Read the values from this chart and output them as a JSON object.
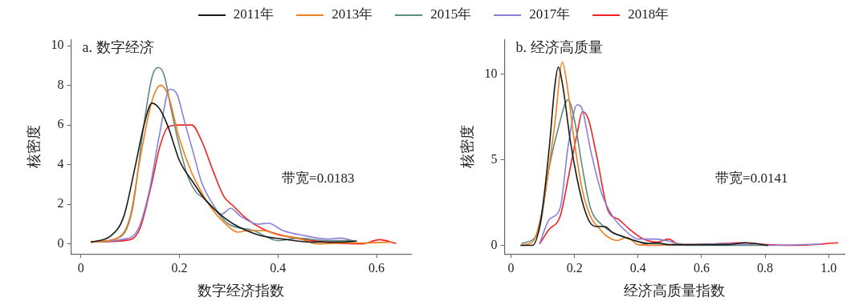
{
  "chart_data": [
    {
      "type": "line",
      "title": "a. 数字经济",
      "xlabel": "数字经济指数",
      "ylabel": "核密度",
      "legend": "top",
      "grid": false,
      "marker": "none",
      "line_style": "solid",
      "xlim": [
        -0.02,
        0.67
      ],
      "ylim": [
        -0.5,
        10.3
      ],
      "xticks": [
        0,
        0.2,
        0.4,
        0.6
      ],
      "yticks": [
        0,
        2,
        4,
        6,
        8,
        10
      ],
      "annotations": [
        "带宽=0.0183"
      ],
      "series": [
        {
          "name": "2011年",
          "color": "#1a1a1a",
          "x": [
            0.02,
            0.06,
            0.087,
            0.11,
            0.127,
            0.144,
            0.16,
            0.177,
            0.2,
            0.228,
            0.25,
            0.28,
            0.31,
            0.36,
            0.41,
            0.47,
            0.53,
            0.56
          ],
          "values": [
            0.1,
            0.4,
            1.4,
            3.9,
            5.9,
            7.1,
            6.8,
            5.9,
            4.2,
            3.1,
            2.3,
            1.55,
            1.0,
            0.46,
            0.25,
            0.1,
            0.1,
            0.15
          ]
        },
        {
          "name": "2013年",
          "color": "#f07f1e",
          "x": [
            0.02,
            0.07,
            0.1,
            0.12,
            0.144,
            0.162,
            0.177,
            0.2,
            0.223,
            0.245,
            0.268,
            0.29,
            0.318,
            0.34,
            0.37,
            0.4,
            0.44,
            0.48,
            0.53,
            0.57,
            0.63
          ],
          "values": [
            0.1,
            0.25,
            1.4,
            4.3,
            7.2,
            8.0,
            7.5,
            5.3,
            3.7,
            2.6,
            1.7,
            1.1,
            0.6,
            0.68,
            0.68,
            0.46,
            0.3,
            0,
            0.05,
            0.05,
            0.1
          ]
        },
        {
          "name": "2015年",
          "color": "#5f8a80",
          "x": [
            0.02,
            0.076,
            0.104,
            0.127,
            0.144,
            0.157,
            0.169,
            0.183,
            0.2,
            0.217,
            0.234,
            0.25,
            0.273,
            0.3,
            0.35,
            0.4,
            0.44,
            0.5,
            0.555
          ],
          "values": [
            0.1,
            0.3,
            1.7,
            5.9,
            8.4,
            8.9,
            8.5,
            6.8,
            4.9,
            3.4,
            2.6,
            2.3,
            1.7,
            1.0,
            0.68,
            0.17,
            0.3,
            0.17,
            0.17
          ]
        },
        {
          "name": "2017年",
          "color": "#8a80d8",
          "x": [
            0.02,
            0.087,
            0.115,
            0.138,
            0.16,
            0.18,
            0.194,
            0.21,
            0.228,
            0.245,
            0.268,
            0.285,
            0.304,
            0.324,
            0.36,
            0.38,
            0.41,
            0.455,
            0.5,
            0.527,
            0.555
          ],
          "values": [
            0.1,
            0.25,
            0.7,
            2.6,
            5.6,
            7.8,
            7.6,
            6.2,
            4.6,
            3.1,
            2.0,
            1.5,
            1.8,
            1.4,
            1.0,
            1.05,
            0.68,
            0.42,
            0.25,
            0.3,
            0.13
          ]
        },
        {
          "name": "2018年",
          "color": "#ee2222",
          "x": [
            0.02,
            0.1,
            0.12,
            0.144,
            0.16,
            0.177,
            0.2,
            0.225,
            0.245,
            0.268,
            0.29,
            0.31,
            0.335,
            0.37,
            0.414,
            0.47,
            0.527,
            0.57,
            0.606,
            0.64
          ],
          "values": [
            0.1,
            0.22,
            0.8,
            3.1,
            4.9,
            5.9,
            6.0,
            6.0,
            5.2,
            3.7,
            2.4,
            1.9,
            1.3,
            0.75,
            0.4,
            0.17,
            0.03,
            0,
            0.22,
            0.03
          ]
        }
      ]
    },
    {
      "type": "line",
      "title": "b. 经济高质量",
      "xlabel": "经济高质量指数",
      "ylabel": "核密度",
      "grid": false,
      "marker": "none",
      "line_style": "solid",
      "xlim": [
        -0.02,
        1.05
      ],
      "ylim": [
        -0.5,
        12
      ],
      "xticks": [
        0,
        0.2,
        0.4,
        0.6,
        0.8,
        {
          "value": 1.0,
          "label": "1.0"
        }
      ],
      "yticks": [
        0,
        5,
        10
      ],
      "annotations": [
        "带宽=0.0141"
      ],
      "series": [
        {
          "color": "#1a1a1a",
          "x": [
            0.03,
            0.068,
            0.094,
            0.12,
            0.138,
            0.149,
            0.164,
            0.186,
            0.208,
            0.23,
            0.25,
            0.27,
            0.295,
            0.32,
            0.347,
            0.39,
            0.426,
            0.46,
            0.5,
            0.59,
            0.68,
            0.74,
            0.81
          ],
          "values": [
            0,
            0,
            1.5,
            5.6,
            9.3,
            10.4,
            9.2,
            6.2,
            3.9,
            2.2,
            1.3,
            1.1,
            1.1,
            0.75,
            0.56,
            0.28,
            0.1,
            0.15,
            0.04,
            0.04,
            0.04,
            0.15,
            0
          ]
        },
        {
          "color": "#f07f1e",
          "x": [
            0.03,
            0.068,
            0.1,
            0.138,
            0.162,
            0.177,
            0.2,
            0.225,
            0.25,
            0.277,
            0.3,
            0.334,
            0.365,
            0.4,
            0.46,
            0.53
          ],
          "values": [
            0,
            0.2,
            2.2,
            7.1,
            10.7,
            9.3,
            6.0,
            3.2,
            1.7,
            1.0,
            0.56,
            0.28,
            0.47,
            0.04,
            0,
            0.08
          ]
        },
        {
          "color": "#5f8a80",
          "x": [
            0.033,
            0.086,
            0.12,
            0.147,
            0.18,
            0.2,
            0.225,
            0.25,
            0.286,
            0.32,
            0.356,
            0.4,
            0.46,
            0.55,
            0.81
          ],
          "values": [
            0.1,
            0.75,
            4.5,
            6.7,
            8.5,
            7.3,
            4.5,
            2.2,
            1.2,
            0.75,
            0.47,
            0.22,
            0.08,
            0,
            0
          ]
        },
        {
          "color": "#8a80d8",
          "x": [
            0.09,
            0.12,
            0.155,
            0.18,
            0.208,
            0.225,
            0.25,
            0.286,
            0.32,
            0.356,
            0.4,
            0.45,
            0.487,
            0.55,
            0.68,
            0.81,
            0.98
          ],
          "values": [
            0.1,
            1.5,
            2.2,
            5.8,
            8.2,
            7.9,
            5.6,
            3.0,
            1.7,
            0.93,
            0.37,
            0.37,
            0.28,
            0.04,
            0.1,
            0,
            0.08
          ]
        },
        {
          "color": "#ee2222",
          "x": [
            0.09,
            0.12,
            0.155,
            0.18,
            0.208,
            0.225,
            0.243,
            0.27,
            0.304,
            0.34,
            0.374,
            0.417,
            0.46,
            0.496,
            0.53,
            0.635,
            0.72,
            0.81,
            0.9,
            1.03
          ],
          "values": [
            0.08,
            0.93,
            1.7,
            3.9,
            6.5,
            7.8,
            7.4,
            5.2,
            2.1,
            1.5,
            0.93,
            0.37,
            0.19,
            0.37,
            0.04,
            0.08,
            0.15,
            0.04,
            0,
            0.15
          ]
        }
      ]
    }
  ]
}
